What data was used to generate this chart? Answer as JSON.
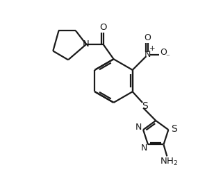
{
  "bg_color": "#ffffff",
  "line_color": "#1a1a1a",
  "lw": 1.6,
  "figsize": [
    3.08,
    2.74
  ],
  "dpi": 100,
  "xlim": [
    0,
    10
  ],
  "ylim": [
    0,
    10
  ]
}
